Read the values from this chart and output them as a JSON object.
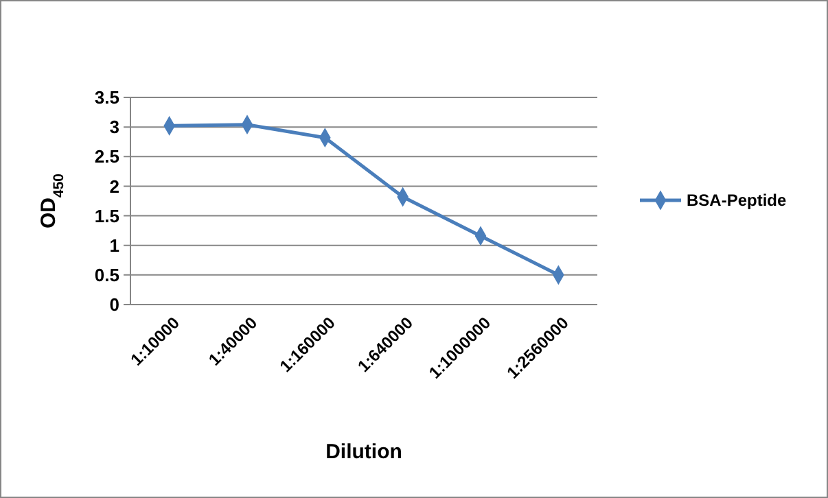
{
  "chart_data": {
    "type": "line",
    "xlabel": "Dilution",
    "ylabel": "OD$_{450}$",
    "categories": [
      "1:10000",
      "1:40000",
      "1:160000",
      "1:640000",
      "1:1000000",
      "1:2560000"
    ],
    "series": [
      {
        "name": "BSA-Peptide",
        "color": "#4a7ebb",
        "values": [
          3.02,
          3.04,
          2.82,
          1.82,
          1.16,
          0.5
        ]
      }
    ],
    "ylim": [
      0,
      3.5
    ],
    "yticks": [
      0,
      0.5,
      1,
      1.5,
      2,
      2.5,
      3,
      3.5
    ],
    "grid": "y",
    "legend": "right",
    "marker": "diamond",
    "line_style": "solid"
  }
}
